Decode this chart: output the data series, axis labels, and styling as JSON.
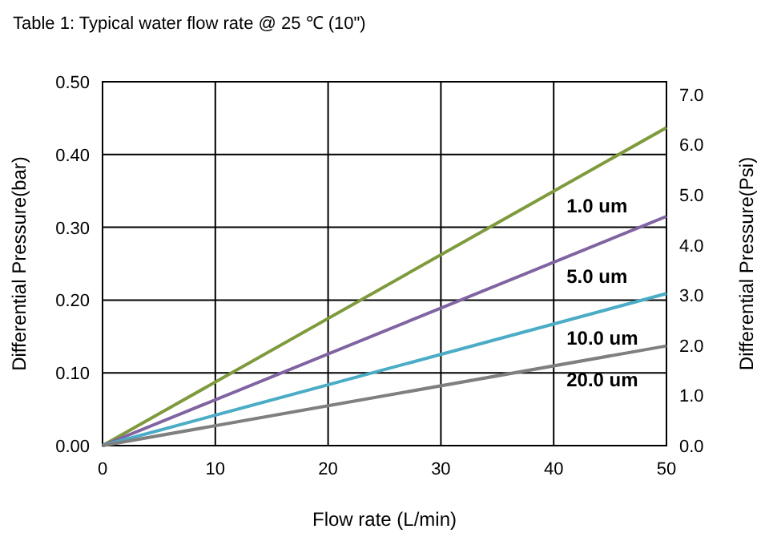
{
  "chart_data": {
    "type": "line",
    "title": "Table 1:  Typical water flow rate @ 25 ℃ (10\")",
    "xlabel": "Flow rate (L/min)",
    "ylabel": "Differential Pressure(bar)",
    "y2label": "Differential Pressure(Psi)",
    "x": [
      0,
      50
    ],
    "series": [
      {
        "name": "1.0 um",
        "color": "#7f9a3c",
        "values": [
          0,
          0.437
        ]
      },
      {
        "name": "5.0 um",
        "color": "#8064a2",
        "values": [
          0,
          0.315
        ]
      },
      {
        "name": "10.0 um",
        "color": "#4bacc6",
        "values": [
          0,
          0.209
        ]
      },
      {
        "name": "20.0 um",
        "color": "#7f7f7f",
        "values": [
          0,
          0.137
        ]
      }
    ],
    "xlim": [
      0,
      50
    ],
    "xticks": [
      0,
      10,
      20,
      30,
      40,
      50
    ],
    "ylim": [
      0,
      0.5
    ],
    "yticks": [
      {
        "value": 0,
        "label": "0.00"
      },
      {
        "value": 0.1,
        "label": "0.10"
      },
      {
        "value": 0.2,
        "label": "0.20"
      },
      {
        "value": 0.3,
        "label": "0.30"
      },
      {
        "value": 0.4,
        "label": "0.40"
      },
      {
        "value": 0.5,
        "label": "0.50"
      }
    ],
    "y2lim": [
      0,
      7.25
    ],
    "y2ticks": [
      {
        "value": 0,
        "label": "0.0"
      },
      {
        "value": 1,
        "label": "1.0"
      },
      {
        "value": 2,
        "label": "2.0"
      },
      {
        "value": 3,
        "label": "3.0"
      },
      {
        "value": 4,
        "label": "4.0"
      },
      {
        "value": 5,
        "label": "5.0"
      },
      {
        "value": 6,
        "label": "6.0"
      },
      {
        "value": 7,
        "label": "7.0"
      }
    ],
    "grid": true,
    "legend": false,
    "marker": "none",
    "line_style": "solid"
  }
}
